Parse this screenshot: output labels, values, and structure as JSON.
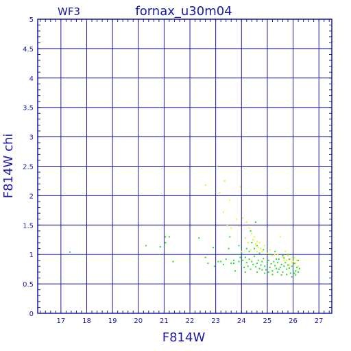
{
  "chart_data": {
    "type": "scatter",
    "title": "fornax_u30m04",
    "corner_label": "WF3",
    "xlabel": "F814W",
    "ylabel": "F814W chi",
    "xlim": [
      16.1,
      27.5
    ],
    "ylim": [
      0,
      5
    ],
    "xticks": [
      17,
      18,
      19,
      20,
      21,
      22,
      23,
      24,
      25,
      26,
      27
    ],
    "yticks": [
      0,
      0.5,
      1,
      1.5,
      2,
      2.5,
      3,
      3.5,
      4,
      4.5,
      5
    ],
    "grid": true,
    "colors": {
      "axes": "#1a1aa6",
      "grid": "#1a1aa6",
      "green": "#22dd22",
      "yellow": "#f2ee22"
    },
    "series": [
      {
        "color_key": "green",
        "points": [
          [
            17.35,
            1.04
          ],
          [
            20.3,
            1.15
          ],
          [
            20.85,
            1.13
          ],
          [
            21.05,
            1.3
          ],
          [
            21.2,
            1.3
          ],
          [
            21.05,
            1.2
          ],
          [
            21.35,
            0.88
          ],
          [
            22.35,
            1.28
          ],
          [
            22.6,
            0.95
          ],
          [
            22.7,
            0.85
          ],
          [
            22.9,
            1.12
          ],
          [
            22.95,
            0.8
          ],
          [
            23.1,
            0.88
          ],
          [
            23.3,
            0.83
          ],
          [
            23.4,
            0.92
          ],
          [
            23.5,
            1.1
          ],
          [
            23.55,
            1.3
          ],
          [
            23.6,
            0.85
          ],
          [
            23.7,
            0.9
          ],
          [
            23.75,
            0.72
          ],
          [
            23.85,
            1.0
          ],
          [
            23.9,
            0.88
          ],
          [
            23.95,
            0.95
          ],
          [
            24.0,
            0.82
          ],
          [
            24.05,
            0.9
          ],
          [
            24.1,
            0.78
          ],
          [
            24.15,
            0.95
          ],
          [
            24.2,
            0.86
          ],
          [
            24.25,
            0.8
          ],
          [
            24.3,
            0.92
          ],
          [
            24.35,
            0.75
          ],
          [
            24.4,
            0.88
          ],
          [
            24.45,
            0.83
          ],
          [
            24.5,
            0.97
          ],
          [
            24.55,
            0.79
          ],
          [
            24.6,
            0.85
          ],
          [
            24.65,
            0.9
          ],
          [
            24.7,
            0.76
          ],
          [
            24.75,
            0.82
          ],
          [
            24.8,
            0.88
          ],
          [
            24.85,
            0.93
          ],
          [
            24.9,
            0.8
          ],
          [
            24.95,
            0.74
          ],
          [
            25.0,
            0.86
          ],
          [
            25.05,
            0.9
          ],
          [
            25.1,
            0.78
          ],
          [
            25.15,
            0.84
          ],
          [
            25.2,
            0.72
          ],
          [
            25.25,
            0.88
          ],
          [
            25.3,
            0.81
          ],
          [
            25.35,
            0.76
          ],
          [
            25.4,
            0.86
          ],
          [
            25.45,
            0.92
          ],
          [
            25.5,
            0.78
          ],
          [
            25.55,
            0.83
          ],
          [
            25.6,
            0.7
          ],
          [
            25.65,
            0.8
          ],
          [
            25.7,
            0.86
          ],
          [
            25.75,
            0.75
          ],
          [
            25.8,
            0.82
          ],
          [
            25.85,
            0.77
          ],
          [
            25.9,
            0.68
          ],
          [
            25.95,
            0.8
          ],
          [
            26.0,
            0.74
          ],
          [
            26.05,
            0.85
          ],
          [
            26.1,
            0.72
          ],
          [
            26.15,
            0.78
          ],
          [
            26.2,
            0.7
          ],
          [
            26.25,
            0.76
          ],
          [
            25.4,
            0.7
          ],
          [
            25.55,
            0.65
          ],
          [
            25.75,
            0.66
          ],
          [
            25.95,
            0.62
          ],
          [
            26.1,
            0.65
          ],
          [
            24.6,
            0.7
          ],
          [
            24.9,
            0.68
          ],
          [
            25.2,
            0.66
          ],
          [
            24.3,
            1.05
          ],
          [
            24.5,
            1.1
          ],
          [
            24.7,
            1.02
          ],
          [
            24.4,
            1.2
          ],
          [
            24.2,
            1.1
          ],
          [
            24.0,
            1.03
          ],
          [
            23.9,
            1.15
          ],
          [
            24.6,
            1.15
          ],
          [
            24.85,
            1.08
          ],
          [
            25.1,
            1.0
          ],
          [
            25.3,
            1.05
          ],
          [
            25.6,
            0.98
          ],
          [
            25.8,
            1.0
          ],
          [
            26.0,
            0.95
          ],
          [
            26.2,
            0.9
          ],
          [
            24.55,
            1.55
          ],
          [
            24.35,
            1.4
          ],
          [
            23.7,
            0.85
          ],
          [
            22.0,
            0.9
          ],
          [
            23.2,
            0.88
          ],
          [
            24.15,
            0.7
          ],
          [
            25.05,
            0.7
          ],
          [
            25.35,
            0.92
          ],
          [
            25.65,
            0.94
          ],
          [
            25.85,
            0.92
          ],
          [
            26.05,
            0.68
          ],
          [
            25.45,
            0.75
          ],
          [
            24.8,
            0.74
          ]
        ]
      },
      {
        "color_key": "yellow",
        "points": [
          [
            22.6,
            2.18
          ],
          [
            23.05,
            2.5
          ],
          [
            23.35,
            2.25
          ],
          [
            23.55,
            1.92
          ],
          [
            23.95,
            2.15
          ],
          [
            23.15,
            2.05
          ],
          [
            23.3,
            1.72
          ],
          [
            23.45,
            1.5
          ],
          [
            23.6,
            1.45
          ],
          [
            23.8,
            1.6
          ],
          [
            24.05,
            1.62
          ],
          [
            24.2,
            1.55
          ],
          [
            24.3,
            1.45
          ],
          [
            24.4,
            1.35
          ],
          [
            24.45,
            1.25
          ],
          [
            24.5,
            1.3
          ],
          [
            24.55,
            1.18
          ],
          [
            24.6,
            1.22
          ],
          [
            24.65,
            1.12
          ],
          [
            24.7,
            1.2
          ],
          [
            24.75,
            1.1
          ],
          [
            24.8,
            1.05
          ],
          [
            24.9,
            1.15
          ],
          [
            25.0,
            1.02
          ],
          [
            25.1,
            1.08
          ],
          [
            25.2,
            0.98
          ],
          [
            25.3,
            1.0
          ],
          [
            25.5,
            1.3
          ],
          [
            25.6,
            0.95
          ],
          [
            25.7,
            1.05
          ],
          [
            25.75,
            0.9
          ],
          [
            25.8,
            0.98
          ],
          [
            25.9,
            0.92
          ],
          [
            26.0,
            0.88
          ],
          [
            26.05,
            0.95
          ],
          [
            26.1,
            0.85
          ],
          [
            26.15,
            0.9
          ],
          [
            25.85,
            0.82
          ],
          [
            25.95,
            0.86
          ],
          [
            26.2,
            0.8
          ],
          [
            24.35,
            1.08
          ],
          [
            24.25,
            1.2
          ],
          [
            24.15,
            1.28
          ],
          [
            24.0,
            1.05
          ],
          [
            23.9,
            1.48
          ],
          [
            24.6,
            1.05
          ],
          [
            25.4,
            1.0
          ],
          [
            25.65,
            0.9
          ]
        ]
      }
    ]
  }
}
